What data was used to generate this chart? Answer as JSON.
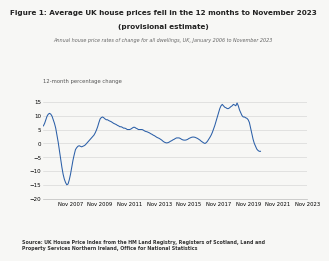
{
  "title_line1": "Figure 1: Average UK house prices fell in the 12 months to November 2023",
  "title_line2": "(provisional estimate)",
  "subtitle": "Annual house price rates of change for all dwellings, UK, January 2006 to November 2023",
  "ylabel": "12-month percentage change",
  "source": "Source: UK House Price Index from the HM Land Registry, Registers of Scotland, Land and\nProperty Services Northern Ireland, Office for National Statistics",
  "line_color": "#2b5fa8",
  "background_color": "#f7f7f5",
  "ylim": [
    -20,
    17
  ],
  "yticks": [
    -20,
    -15,
    -10,
    -5,
    0,
    5,
    10,
    15
  ],
  "x_tick_labels": [
    "Nov 2007",
    "Nov 2009",
    "Nov 2011",
    "Nov 2013",
    "Nov 2015",
    "Nov 2017",
    "Nov 2019",
    "Nov 2021",
    "Nov 2023"
  ],
  "xtick_months": [
    22,
    46,
    70,
    94,
    118,
    142,
    166,
    190,
    214
  ],
  "data": [
    6.3,
    7.2,
    8.5,
    9.8,
    10.5,
    10.8,
    10.5,
    9.8,
    8.5,
    7.2,
    5.5,
    3.0,
    0.5,
    -2.5,
    -5.5,
    -8.5,
    -11.0,
    -12.8,
    -14.0,
    -14.8,
    -14.5,
    -13.0,
    -11.0,
    -8.5,
    -6.0,
    -4.0,
    -2.2,
    -1.5,
    -1.0,
    -0.8,
    -1.0,
    -1.2,
    -1.0,
    -0.8,
    -0.5,
    0.0,
    0.5,
    1.0,
    1.5,
    2.0,
    2.5,
    3.0,
    3.8,
    4.8,
    6.0,
    7.5,
    8.8,
    9.3,
    9.5,
    9.2,
    8.8,
    8.5,
    8.5,
    8.2,
    8.0,
    7.8,
    7.5,
    7.2,
    7.0,
    6.8,
    6.5,
    6.3,
    6.0,
    6.0,
    5.8,
    5.5,
    5.5,
    5.3,
    5.0,
    5.0,
    5.0,
    5.2,
    5.5,
    5.8,
    5.8,
    5.5,
    5.3,
    5.0,
    5.0,
    5.0,
    5.0,
    4.8,
    4.5,
    4.3,
    4.2,
    4.0,
    3.8,
    3.5,
    3.3,
    3.0,
    2.8,
    2.5,
    2.2,
    2.0,
    1.8,
    1.5,
    1.2,
    0.8,
    0.5,
    0.3,
    0.2,
    0.3,
    0.5,
    0.8,
    1.0,
    1.3,
    1.5,
    1.8,
    2.0,
    2.0,
    2.0,
    1.8,
    1.5,
    1.3,
    1.2,
    1.2,
    1.3,
    1.5,
    1.8,
    2.0,
    2.2,
    2.3,
    2.3,
    2.2,
    2.0,
    1.8,
    1.5,
    1.2,
    0.8,
    0.5,
    0.2,
    0.0,
    0.3,
    0.8,
    1.5,
    2.2,
    3.0,
    4.0,
    5.2,
    6.5,
    8.0,
    9.5,
    11.0,
    12.5,
    13.5,
    14.0,
    13.5,
    13.0,
    12.8,
    12.5,
    12.5,
    12.8,
    13.2,
    13.5,
    14.0,
    13.8,
    13.5,
    14.5,
    13.5,
    12.0,
    11.0,
    10.0,
    9.5,
    9.5,
    9.2,
    9.0,
    8.5,
    7.5,
    5.5,
    3.5,
    1.5,
    0.0,
    -1.0,
    -2.0,
    -2.5,
    -2.8,
    -2.8
  ]
}
